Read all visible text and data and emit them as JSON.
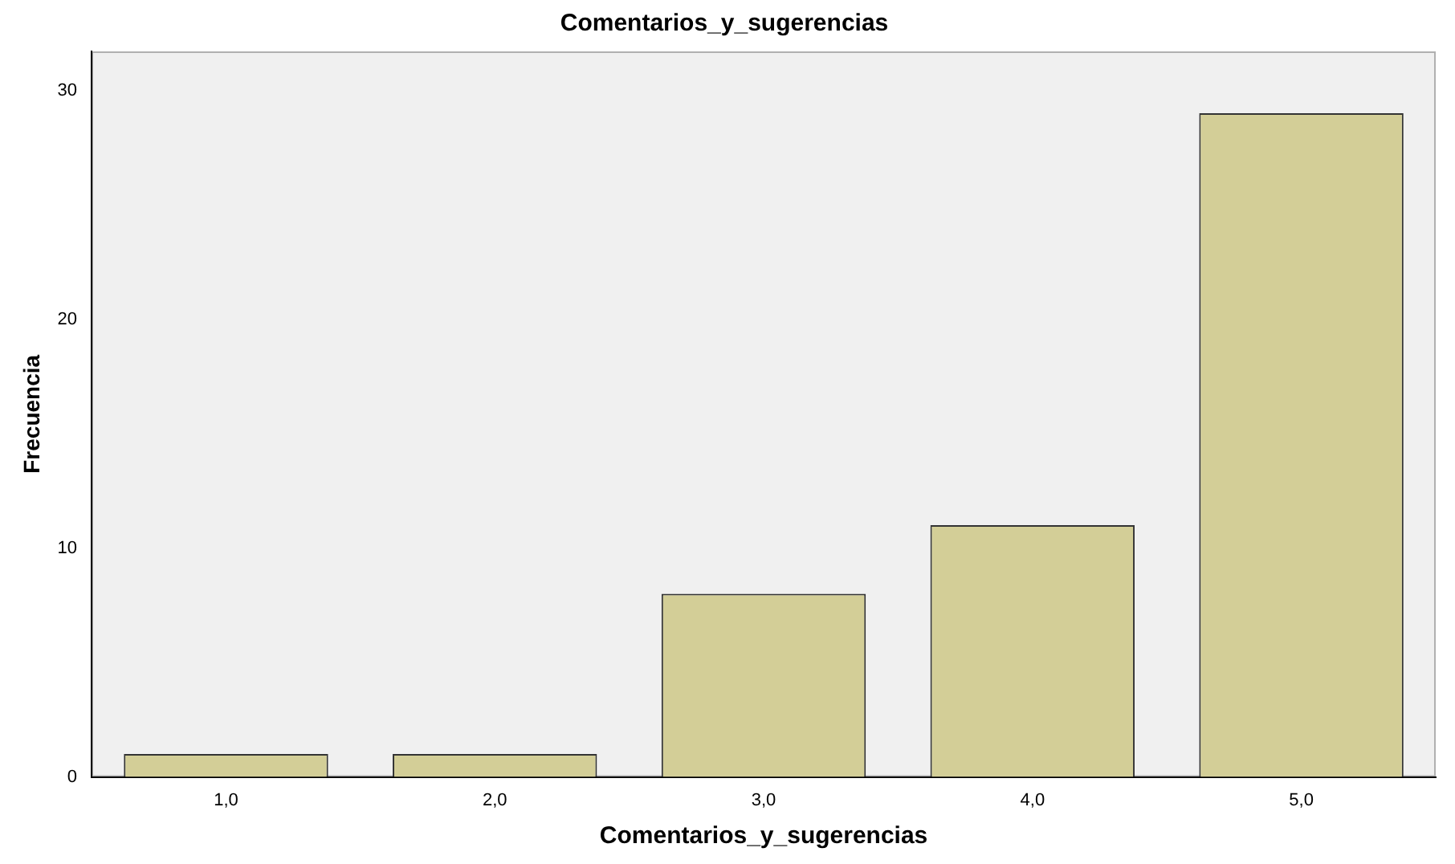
{
  "chart_data": {
    "type": "bar",
    "title": "Comentarios_y_sugerencias",
    "xlabel": "Comentarios_y_sugerencias",
    "ylabel": "Frecuencia",
    "categories": [
      "1,0",
      "2,0",
      "3,0",
      "4,0",
      "5,0"
    ],
    "values": [
      1,
      1,
      8,
      11,
      29
    ],
    "color": "#d3ce97",
    "ylim": [
      0,
      31.7
    ],
    "yticks": [
      0,
      10,
      20,
      30
    ]
  }
}
